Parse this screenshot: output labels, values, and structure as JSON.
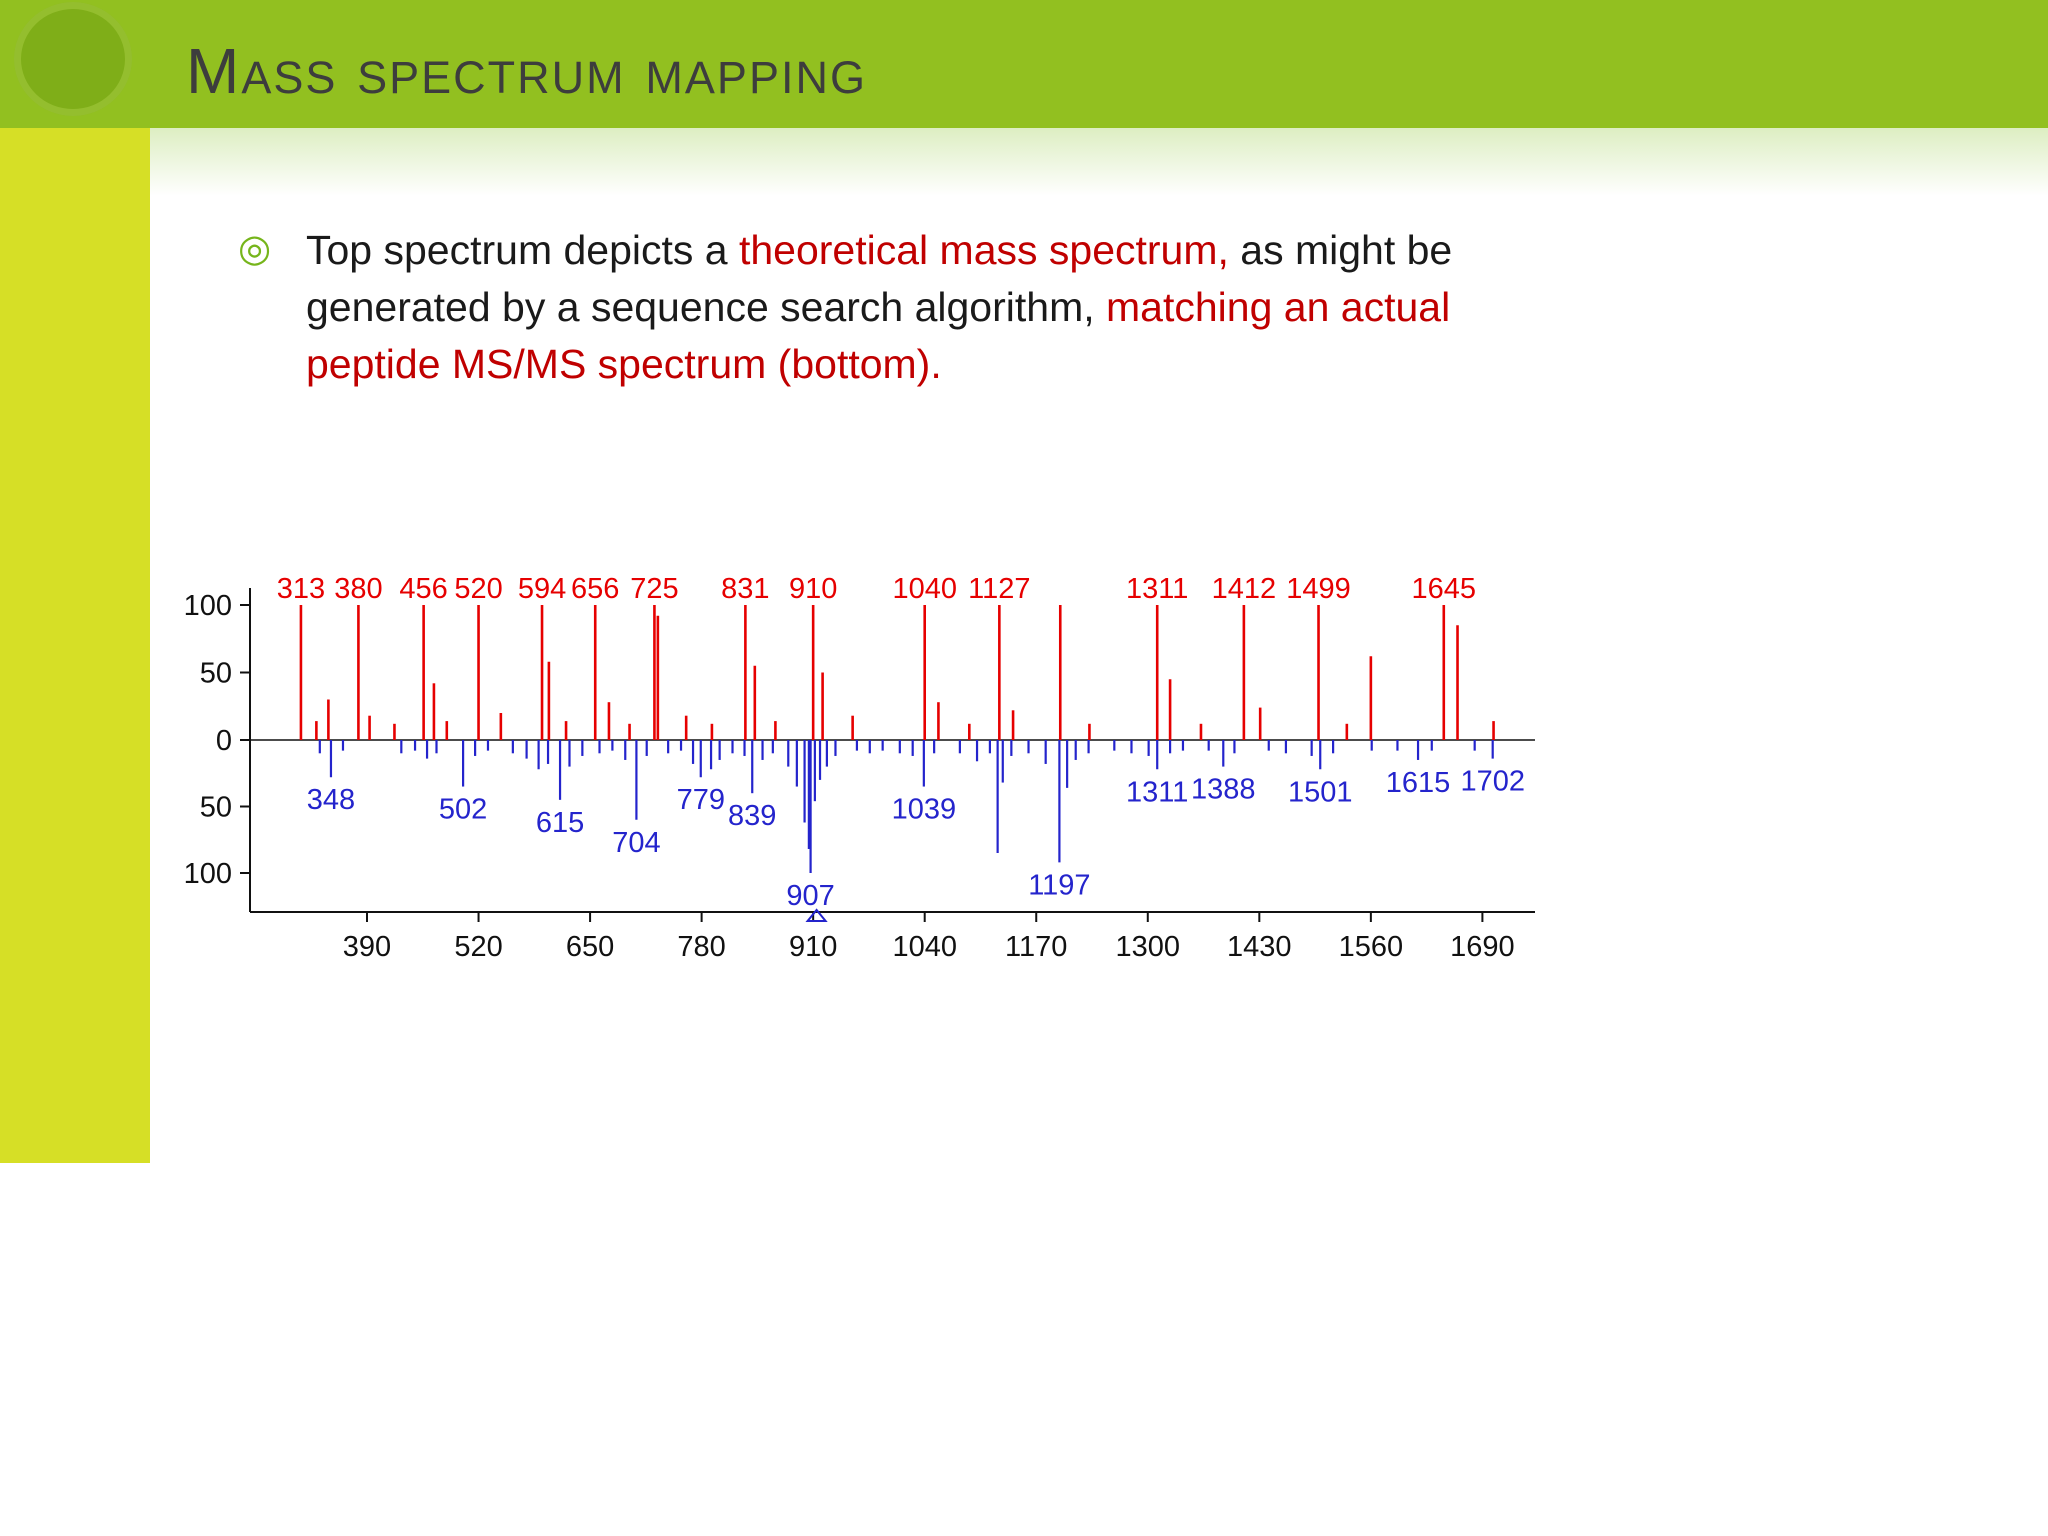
{
  "slide": {
    "title": "Mass spectrum mapping",
    "bullet_icon": "◎",
    "bullet_segments": [
      {
        "text": "Top spectrum depicts a ",
        "color": "black"
      },
      {
        "text": "theoretical mass spectrum,",
        "color": "red"
      },
      {
        "text": " as might be generated by a sequence search algorithm, ",
        "color": "black"
      },
      {
        "text": "matching an actual peptide MS/MS spectrum (bottom).",
        "color": "red"
      }
    ]
  },
  "colors": {
    "header_green": "#92c020",
    "strip_yellow_green": "#d6df26",
    "text_red": "#c00000",
    "spectrum_red": "#e60000",
    "spectrum_blue": "#2424cc",
    "axis_black": "#111111"
  },
  "chart_data": {
    "type": "bar",
    "variant": "mirrored_mass_spectrum",
    "title": "",
    "xlabel": "",
    "ylabel": "",
    "x_axis": {
      "ticks": [
        390,
        520,
        650,
        780,
        910,
        1040,
        1170,
        1300,
        1430,
        1560,
        1690
      ],
      "range": [
        255,
        1750
      ]
    },
    "y_axis": {
      "ticks": [
        "100",
        "50",
        "0",
        "50",
        "100"
      ],
      "range_up": [
        0,
        100
      ],
      "range_down": [
        0,
        100
      ]
    },
    "precursor_marker_mz": 914,
    "series": [
      {
        "name": "theoretical mass spectrum (top)",
        "color": "#e60000",
        "direction": "up",
        "peaks": [
          {
            "mz": 313,
            "i": 100,
            "label": true
          },
          {
            "mz": 331,
            "i": 14
          },
          {
            "mz": 345,
            "i": 30
          },
          {
            "mz": 380,
            "i": 100,
            "label": true
          },
          {
            "mz": 393,
            "i": 18
          },
          {
            "mz": 422,
            "i": 12
          },
          {
            "mz": 456,
            "i": 100,
            "label": true
          },
          {
            "mz": 468,
            "i": 42
          },
          {
            "mz": 483,
            "i": 14
          },
          {
            "mz": 520,
            "i": 100,
            "label": true
          },
          {
            "mz": 546,
            "i": 20
          },
          {
            "mz": 594,
            "i": 100,
            "label": true
          },
          {
            "mz": 602,
            "i": 58
          },
          {
            "mz": 622,
            "i": 14
          },
          {
            "mz": 656,
            "i": 100,
            "label": true
          },
          {
            "mz": 672,
            "i": 28
          },
          {
            "mz": 696,
            "i": 12
          },
          {
            "mz": 725,
            "i": 100,
            "label": true
          },
          {
            "mz": 729,
            "i": 92
          },
          {
            "mz": 762,
            "i": 18
          },
          {
            "mz": 792,
            "i": 12
          },
          {
            "mz": 831,
            "i": 100,
            "label": true
          },
          {
            "mz": 842,
            "i": 55
          },
          {
            "mz": 866,
            "i": 14
          },
          {
            "mz": 910,
            "i": 100,
            "label": true
          },
          {
            "mz": 921,
            "i": 50
          },
          {
            "mz": 956,
            "i": 18
          },
          {
            "mz": 1040,
            "i": 100,
            "label": true
          },
          {
            "mz": 1056,
            "i": 28
          },
          {
            "mz": 1092,
            "i": 12
          },
          {
            "mz": 1127,
            "i": 100,
            "label": true
          },
          {
            "mz": 1143,
            "i": 22
          },
          {
            "mz": 1198,
            "i": 100
          },
          {
            "mz": 1232,
            "i": 12
          },
          {
            "mz": 1311,
            "i": 100,
            "label": true
          },
          {
            "mz": 1326,
            "i": 45
          },
          {
            "mz": 1362,
            "i": 12
          },
          {
            "mz": 1412,
            "i": 100,
            "label": true
          },
          {
            "mz": 1431,
            "i": 24
          },
          {
            "mz": 1499,
            "i": 100,
            "label": true
          },
          {
            "mz": 1532,
            "i": 12
          },
          {
            "mz": 1560,
            "i": 62
          },
          {
            "mz": 1645,
            "i": 100,
            "label": true
          },
          {
            "mz": 1661,
            "i": 85
          },
          {
            "mz": 1703,
            "i": 14
          }
        ]
      },
      {
        "name": "actual peptide MS/MS spectrum (bottom)",
        "color": "#2424cc",
        "direction": "down",
        "peaks": [
          {
            "mz": 335,
            "i": 10
          },
          {
            "mz": 348,
            "i": 28,
            "label": true
          },
          {
            "mz": 362,
            "i": 8
          },
          {
            "mz": 430,
            "i": 10
          },
          {
            "mz": 446,
            "i": 8
          },
          {
            "mz": 460,
            "i": 14
          },
          {
            "mz": 471,
            "i": 10
          },
          {
            "mz": 502,
            "i": 35,
            "label": true
          },
          {
            "mz": 516,
            "i": 12
          },
          {
            "mz": 531,
            "i": 8
          },
          {
            "mz": 560,
            "i": 10
          },
          {
            "mz": 576,
            "i": 14
          },
          {
            "mz": 590,
            "i": 22
          },
          {
            "mz": 601,
            "i": 18
          },
          {
            "mz": 615,
            "i": 45,
            "label": true
          },
          {
            "mz": 626,
            "i": 20
          },
          {
            "mz": 641,
            "i": 12
          },
          {
            "mz": 661,
            "i": 10
          },
          {
            "mz": 676,
            "i": 8
          },
          {
            "mz": 691,
            "i": 15
          },
          {
            "mz": 704,
            "i": 60,
            "label": true
          },
          {
            "mz": 716,
            "i": 12
          },
          {
            "mz": 741,
            "i": 10
          },
          {
            "mz": 756,
            "i": 8
          },
          {
            "mz": 770,
            "i": 18
          },
          {
            "mz": 779,
            "i": 28,
            "label": true
          },
          {
            "mz": 791,
            "i": 22
          },
          {
            "mz": 801,
            "i": 15
          },
          {
            "mz": 816,
            "i": 10
          },
          {
            "mz": 830,
            "i": 12
          },
          {
            "mz": 839,
            "i": 40,
            "label": true
          },
          {
            "mz": 851,
            "i": 15
          },
          {
            "mz": 863,
            "i": 10
          },
          {
            "mz": 881,
            "i": 20
          },
          {
            "mz": 891,
            "i": 35
          },
          {
            "mz": 900,
            "i": 62
          },
          {
            "mz": 905,
            "i": 82
          },
          {
            "mz": 907,
            "i": 100,
            "label": true
          },
          {
            "mz": 912,
            "i": 46
          },
          {
            "mz": 918,
            "i": 30
          },
          {
            "mz": 926,
            "i": 20
          },
          {
            "mz": 936,
            "i": 12
          },
          {
            "mz": 961,
            "i": 8
          },
          {
            "mz": 976,
            "i": 10
          },
          {
            "mz": 991,
            "i": 8
          },
          {
            "mz": 1011,
            "i": 10
          },
          {
            "mz": 1026,
            "i": 12
          },
          {
            "mz": 1039,
            "i": 35,
            "label": true
          },
          {
            "mz": 1051,
            "i": 10
          },
          {
            "mz": 1081,
            "i": 10
          },
          {
            "mz": 1101,
            "i": 16
          },
          {
            "mz": 1116,
            "i": 10
          },
          {
            "mz": 1125,
            "i": 85
          },
          {
            "mz": 1131,
            "i": 32
          },
          {
            "mz": 1141,
            "i": 12
          },
          {
            "mz": 1161,
            "i": 10
          },
          {
            "mz": 1181,
            "i": 18
          },
          {
            "mz": 1197,
            "i": 92,
            "label": true
          },
          {
            "mz": 1206,
            "i": 36
          },
          {
            "mz": 1216,
            "i": 15
          },
          {
            "mz": 1231,
            "i": 10
          },
          {
            "mz": 1261,
            "i": 8
          },
          {
            "mz": 1281,
            "i": 10
          },
          {
            "mz": 1301,
            "i": 12
          },
          {
            "mz": 1311,
            "i": 22,
            "label": true
          },
          {
            "mz": 1326,
            "i": 10
          },
          {
            "mz": 1341,
            "i": 8
          },
          {
            "mz": 1371,
            "i": 8
          },
          {
            "mz": 1388,
            "i": 20,
            "label": true
          },
          {
            "mz": 1401,
            "i": 10
          },
          {
            "mz": 1441,
            "i": 8
          },
          {
            "mz": 1461,
            "i": 10
          },
          {
            "mz": 1491,
            "i": 12
          },
          {
            "mz": 1501,
            "i": 22,
            "label": true
          },
          {
            "mz": 1516,
            "i": 10
          },
          {
            "mz": 1561,
            "i": 8
          },
          {
            "mz": 1591,
            "i": 8
          },
          {
            "mz": 1615,
            "i": 15,
            "label": true
          },
          {
            "mz": 1631,
            "i": 8
          },
          {
            "mz": 1681,
            "i": 8
          },
          {
            "mz": 1702,
            "i": 14,
            "label": true
          }
        ]
      }
    ]
  }
}
